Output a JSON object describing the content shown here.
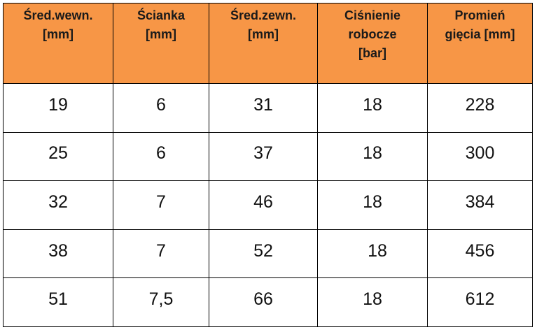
{
  "table": {
    "columns": [
      {
        "lines": [
          "Śred.wewn.",
          "[mm]"
        ]
      },
      {
        "lines": [
          "Ścianka",
          "[mm]"
        ]
      },
      {
        "lines": [
          "Śred.zewn.",
          "[mm]"
        ]
      },
      {
        "lines": [
          "Ciśnienie",
          "robocze",
          "[bar]"
        ]
      },
      {
        "lines": [
          "Promień",
          "gięcia [mm]"
        ]
      }
    ],
    "rows": [
      [
        "19",
        "6",
        "31",
        "18",
        "228"
      ],
      [
        "25",
        "6",
        "37",
        "18",
        "300"
      ],
      [
        "32",
        "7",
        "46",
        "18",
        "384"
      ],
      [
        "38",
        "7",
        "52",
        "18",
        "456"
      ],
      [
        "51",
        "7,5",
        "66",
        "18",
        "612"
      ]
    ]
  },
  "colors": {
    "header_bg": "#f79646",
    "border": "#000000"
  }
}
